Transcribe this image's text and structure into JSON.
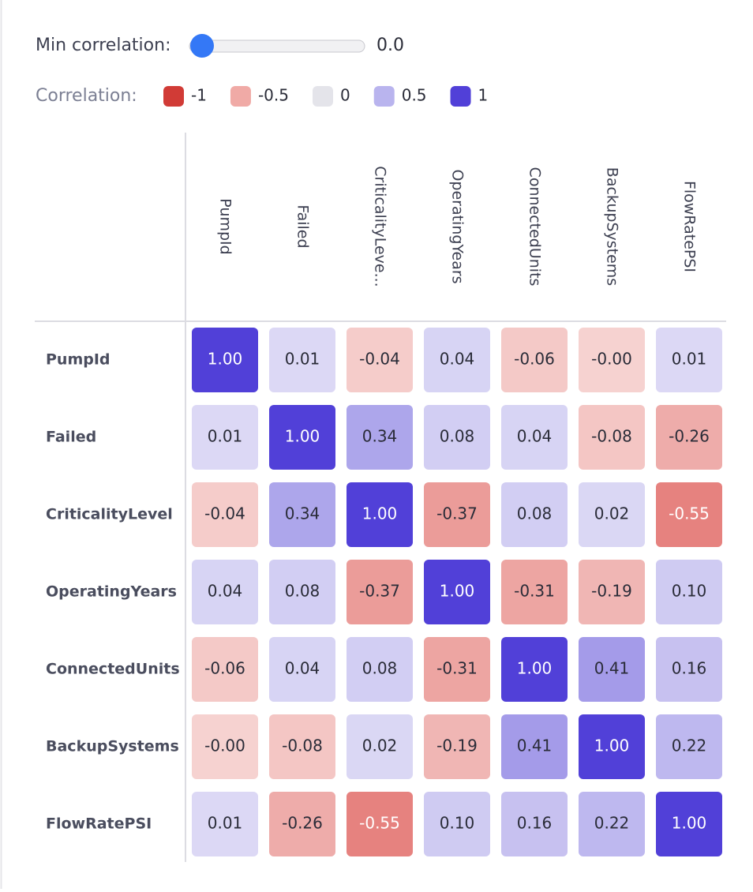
{
  "controls": {
    "min_correlation_label": "Min correlation:",
    "min_correlation_value": "0.0"
  },
  "legend": {
    "title": "Correlation:",
    "items": [
      {
        "value": -1,
        "color": "#d13b36"
      },
      {
        "value": -0.5,
        "color": "#f0aaa6"
      },
      {
        "value": 0,
        "color": "#e4e4ea"
      },
      {
        "value": 0.5,
        "color": "#b9b4ee"
      },
      {
        "value": 1,
        "color": "#5140d8"
      }
    ]
  },
  "chart_data": {
    "type": "heatmap",
    "x_categories": [
      "PumpId",
      "Failed",
      "CriticalityLeve...",
      "OperatingYears",
      "ConnectedUnits",
      "BackupSystems",
      "FlowRatePSI"
    ],
    "y_categories": [
      "PumpId",
      "Failed",
      "CriticalityLevel",
      "OperatingYears",
      "ConnectedUnits",
      "BackupSystems",
      "FlowRatePSI"
    ],
    "cell_colors": {
      "negative": [
        "#f6d2d0",
        "#d8413c"
      ],
      "positive": [
        "#dddaf5",
        "#5140d8"
      ]
    },
    "values": [
      [
        1,
        0.01,
        -0.04,
        0.04,
        -0.06,
        -0.0,
        0.01
      ],
      [
        0.01,
        1,
        0.34,
        0.08,
        0.04,
        -0.08,
        -0.26
      ],
      [
        -0.04,
        0.34,
        1,
        -0.37,
        0.08,
        0.02,
        -0.55
      ],
      [
        0.04,
        0.08,
        -0.37,
        1,
        -0.31,
        -0.19,
        0.1
      ],
      [
        -0.06,
        0.04,
        0.08,
        -0.31,
        1,
        0.41,
        0.16
      ],
      [
        -0.0,
        -0.08,
        0.02,
        -0.19,
        0.41,
        1,
        0.22
      ],
      [
        0.01,
        -0.26,
        -0.55,
        0.1,
        0.16,
        0.22,
        1
      ]
    ],
    "value_labels": [
      [
        "1.00",
        "0.01",
        "-0.04",
        "0.04",
        "-0.06",
        "-0.00",
        "0.01"
      ],
      [
        "0.01",
        "1.00",
        "0.34",
        "0.08",
        "0.04",
        "-0.08",
        "-0.26"
      ],
      [
        "-0.04",
        "0.34",
        "1.00",
        "-0.37",
        "0.08",
        "0.02",
        "-0.55"
      ],
      [
        "0.04",
        "0.08",
        "-0.37",
        "1.00",
        "-0.31",
        "-0.19",
        "0.10"
      ],
      [
        "-0.06",
        "0.04",
        "0.08",
        "-0.31",
        "1.00",
        "0.41",
        "0.16"
      ],
      [
        "-0.00",
        "-0.08",
        "0.02",
        "-0.19",
        "0.41",
        "1.00",
        "0.22"
      ],
      [
        "0.01",
        "-0.26",
        "-0.55",
        "0.10",
        "0.16",
        "0.22",
        "1.00"
      ]
    ]
  }
}
